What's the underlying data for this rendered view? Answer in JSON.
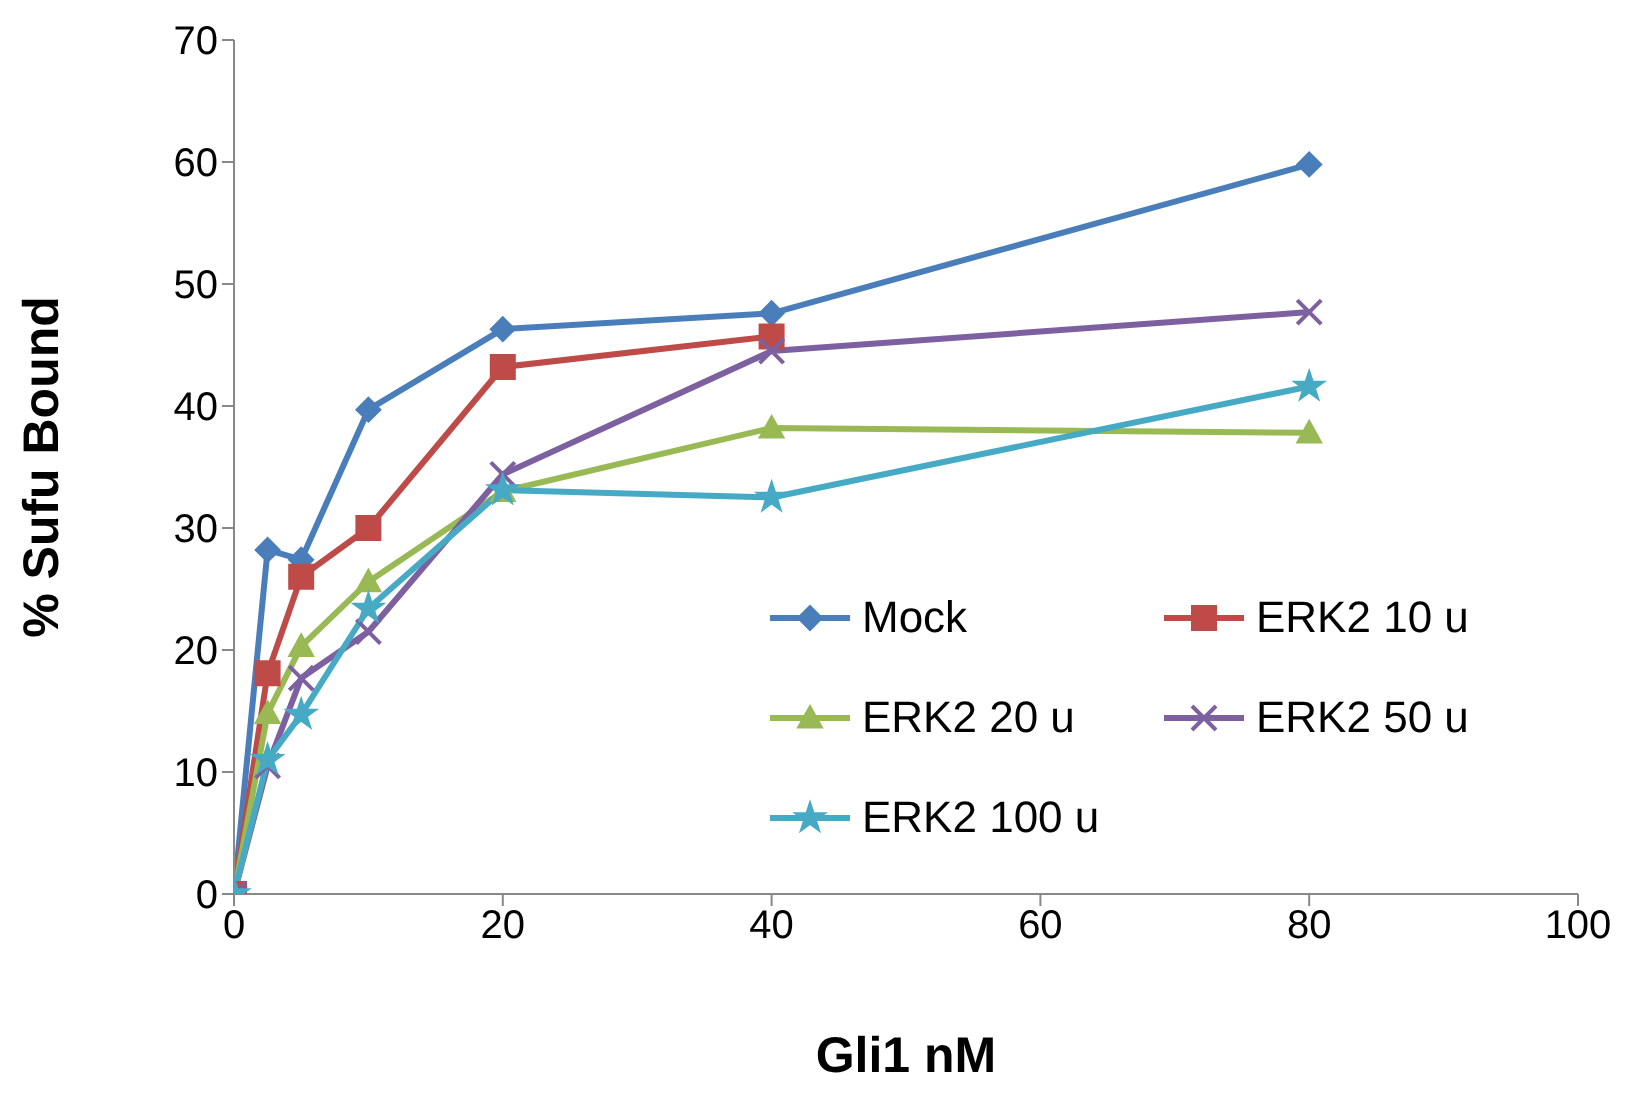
{
  "chart_data": {
    "type": "line",
    "xlabel": "Gli1 nM",
    "ylabel": "% Sufu Bound",
    "x": [
      0,
      2.5,
      5,
      10,
      20,
      40,
      80
    ],
    "xlim": [
      0,
      100
    ],
    "xticks": [
      0,
      20,
      40,
      60,
      80,
      100
    ],
    "ylim": [
      0,
      70
    ],
    "yticks": [
      0,
      10,
      20,
      30,
      40,
      50,
      60,
      70
    ],
    "grid": false,
    "legend": "bottom right",
    "series": [
      {
        "name": "Mock",
        "color": "#4a7ebb",
        "marker": "diamond",
        "values": [
          0,
          28.2,
          27.4,
          39.7,
          46.3,
          47.6,
          59.8
        ]
      },
      {
        "name": "ERK2 10 u",
        "color": "#be4b48",
        "marker": "square",
        "values": [
          0,
          18.1,
          26,
          30,
          43.2,
          45.7,
          null
        ]
      },
      {
        "name": "ERK2 20 u",
        "color": "#98b954",
        "marker": "triangle",
        "values": [
          0,
          14.8,
          20.3,
          25.6,
          33,
          38.2,
          37.8
        ]
      },
      {
        "name": "ERK2 50 u",
        "color": "#7d60a0",
        "marker": "cross",
        "values": [
          0,
          10.5,
          17.7,
          21.5,
          34.4,
          44.5,
          47.7
        ]
      },
      {
        "name": "ERK2 100 u",
        "color": "#46aac5",
        "marker": "star",
        "values": [
          0,
          11,
          14.7,
          23.4,
          33.1,
          32.5,
          41.6
        ]
      }
    ]
  }
}
